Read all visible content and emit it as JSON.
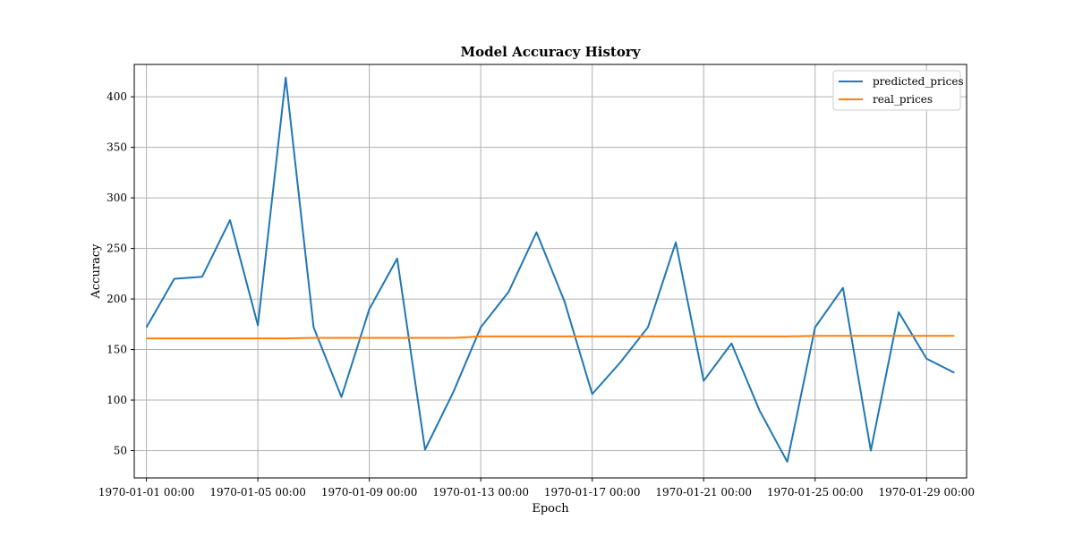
{
  "chart_data": {
    "type": "line",
    "title": "Model Accuracy History",
    "xlabel": "Epoch",
    "ylabel": "Accuracy",
    "x_start": "1970-01-01 00:00",
    "x": [
      "1970-01-01",
      "1970-01-02",
      "1970-01-03",
      "1970-01-04",
      "1970-01-05",
      "1970-01-06",
      "1970-01-07",
      "1970-01-08",
      "1970-01-09",
      "1970-01-10",
      "1970-01-11",
      "1970-01-12",
      "1970-01-13",
      "1970-01-14",
      "1970-01-15",
      "1970-01-16",
      "1970-01-17",
      "1970-01-18",
      "1970-01-19",
      "1970-01-20",
      "1970-01-21",
      "1970-01-22",
      "1970-01-23",
      "1970-01-24",
      "1970-01-25",
      "1970-01-26",
      "1970-01-27",
      "1970-01-28",
      "1970-01-29",
      "1970-01-30"
    ],
    "xlim": [
      "1969-12-31 13:30",
      "1970-01-30 10:30"
    ],
    "ylim": [
      23,
      432
    ],
    "x_ticks": [
      "1970-01-01 00:00",
      "1970-01-05 00:00",
      "1970-01-09 00:00",
      "1970-01-13 00:00",
      "1970-01-17 00:00",
      "1970-01-21 00:00",
      "1970-01-25 00:00",
      "1970-01-29 00:00"
    ],
    "y_ticks": [
      50,
      100,
      150,
      200,
      250,
      300,
      350,
      400
    ],
    "grid": true,
    "legend_position": "top-right",
    "series": [
      {
        "name": "predicted_prices",
        "color": "#1f77b4",
        "values": [
          172,
          220,
          222,
          278,
          174,
          419,
          172,
          103,
          190,
          240,
          51,
          107,
          172,
          207,
          266,
          198,
          106,
          137,
          172,
          256,
          119,
          156,
          90,
          39,
          172,
          211,
          50,
          187,
          141,
          127
        ]
      },
      {
        "name": "real_prices",
        "color": "#ff7f0e",
        "values": [
          161,
          161,
          161,
          161,
          161,
          161,
          161.5,
          161.5,
          161.5,
          161.5,
          161.5,
          161.5,
          163,
          163,
          163,
          163,
          163,
          163,
          163,
          163,
          163,
          163,
          163,
          163,
          163.5,
          163.5,
          163.5,
          163.5,
          163.5,
          163.5
        ]
      }
    ]
  }
}
